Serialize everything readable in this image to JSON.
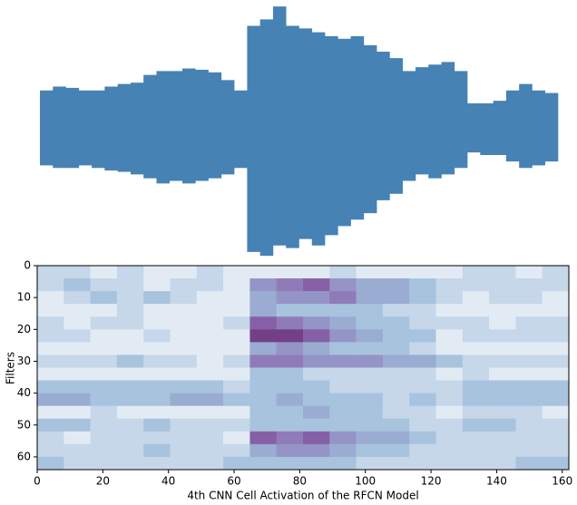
{
  "chart_data": [
    {
      "type": "waveform",
      "color": "#4682b4",
      "ylim": [
        -1,
        1
      ],
      "upper": [
        0.3,
        0.33,
        0.32,
        0.3,
        0.3,
        0.33,
        0.35,
        0.36,
        0.42,
        0.45,
        0.45,
        0.47,
        0.46,
        0.44,
        0.38,
        0.3,
        0.8,
        0.85,
        0.95,
        0.8,
        0.78,
        0.75,
        0.72,
        0.7,
        0.72,
        0.65,
        0.6,
        0.55,
        0.45,
        0.48,
        0.5,
        0.52,
        0.45,
        0.2,
        0.2,
        0.22,
        0.3,
        0.35,
        0.3,
        0.28
      ],
      "lower": [
        -0.28,
        -0.3,
        -0.3,
        -0.28,
        -0.3,
        -0.32,
        -0.33,
        -0.35,
        -0.38,
        -0.42,
        -0.4,
        -0.42,
        -0.4,
        -0.38,
        -0.35,
        -0.3,
        -0.95,
        -0.98,
        -0.9,
        -0.92,
        -0.85,
        -0.9,
        -0.82,
        -0.75,
        -0.7,
        -0.65,
        -0.55,
        -0.5,
        -0.4,
        -0.35,
        -0.38,
        -0.35,
        -0.3,
        -0.18,
        -0.2,
        -0.2,
        -0.25,
        -0.3,
        -0.28,
        -0.25
      ]
    },
    {
      "type": "heatmap",
      "xlabel": "4th CNN Cell Activation of the RFCN Model",
      "ylabel": "Filters",
      "xlim": [
        0,
        162
      ],
      "ylim": [
        0,
        64
      ],
      "xticks": [
        0,
        20,
        40,
        60,
        80,
        100,
        120,
        140,
        160
      ],
      "yticks": [
        0,
        10,
        20,
        30,
        40,
        50,
        60
      ],
      "clim": [
        0,
        1
      ],
      "colormap": [
        "#ffffff",
        "#9ebcda",
        "#8c6bb1",
        "#4d004b"
      ],
      "values": [
        [
          0.2,
          0.2,
          0.1,
          0.2,
          0.1,
          0.1,
          0.2,
          0.1,
          0.1,
          0.1,
          0.1,
          0.2,
          0.1,
          0.1,
          0.1,
          0.1,
          0.2,
          0.2,
          0.1,
          0.2
        ],
        [
          0.2,
          0.3,
          0.2,
          0.2,
          0.1,
          0.2,
          0.2,
          0.1,
          0.5,
          0.6,
          0.7,
          0.5,
          0.4,
          0.4,
          0.3,
          0.2,
          0.2,
          0.2,
          0.2,
          0.2
        ],
        [
          0.1,
          0.2,
          0.3,
          0.2,
          0.3,
          0.2,
          0.1,
          0.1,
          0.4,
          0.5,
          0.5,
          0.6,
          0.4,
          0.4,
          0.3,
          0.2,
          0.1,
          0.2,
          0.2,
          0.1
        ],
        [
          0.1,
          0.1,
          0.1,
          0.2,
          0.1,
          0.1,
          0.1,
          0.1,
          0.4,
          0.3,
          0.3,
          0.3,
          0.3,
          0.2,
          0.2,
          0.1,
          0.1,
          0.1,
          0.1,
          0.1
        ],
        [
          0.2,
          0.1,
          0.2,
          0.2,
          0.1,
          0.1,
          0.1,
          0.2,
          0.7,
          0.6,
          0.5,
          0.4,
          0.3,
          0.3,
          0.2,
          0.2,
          0.2,
          0.1,
          0.2,
          0.2
        ],
        [
          0.2,
          0.2,
          0.1,
          0.1,
          0.2,
          0.1,
          0.1,
          0.1,
          0.8,
          0.8,
          0.7,
          0.5,
          0.4,
          0.3,
          0.3,
          0.1,
          0.2,
          0.2,
          0.2,
          0.2
        ],
        [
          0.1,
          0.1,
          0.1,
          0.1,
          0.1,
          0.1,
          0.1,
          0.1,
          0.4,
          0.5,
          0.4,
          0.3,
          0.3,
          0.3,
          0.2,
          0.1,
          0.1,
          0.1,
          0.1,
          0.1
        ],
        [
          0.2,
          0.2,
          0.2,
          0.3,
          0.2,
          0.2,
          0.1,
          0.2,
          0.6,
          0.6,
          0.5,
          0.5,
          0.5,
          0.4,
          0.4,
          0.3,
          0.2,
          0.2,
          0.2,
          0.2
        ],
        [
          0.1,
          0.1,
          0.1,
          0.1,
          0.1,
          0.1,
          0.1,
          0.1,
          0.3,
          0.3,
          0.2,
          0.2,
          0.2,
          0.2,
          0.2,
          0.1,
          0.2,
          0.1,
          0.1,
          0.1
        ],
        [
          0.3,
          0.3,
          0.3,
          0.3,
          0.3,
          0.3,
          0.3,
          0.2,
          0.3,
          0.3,
          0.3,
          0.2,
          0.2,
          0.2,
          0.2,
          0.2,
          0.3,
          0.3,
          0.3,
          0.3
        ],
        [
          0.4,
          0.4,
          0.3,
          0.3,
          0.3,
          0.4,
          0.4,
          0.3,
          0.3,
          0.4,
          0.3,
          0.3,
          0.3,
          0.2,
          0.3,
          0.2,
          0.3,
          0.3,
          0.3,
          0.3
        ],
        [
          0.1,
          0.1,
          0.2,
          0.1,
          0.1,
          0.1,
          0.1,
          0.1,
          0.3,
          0.3,
          0.4,
          0.3,
          0.3,
          0.2,
          0.2,
          0.1,
          0.2,
          0.2,
          0.2,
          0.1
        ],
        [
          0.3,
          0.3,
          0.2,
          0.2,
          0.3,
          0.2,
          0.2,
          0.2,
          0.3,
          0.3,
          0.3,
          0.3,
          0.3,
          0.3,
          0.2,
          0.2,
          0.3,
          0.3,
          0.2,
          0.2
        ],
        [
          0.2,
          0.1,
          0.2,
          0.2,
          0.2,
          0.2,
          0.2,
          0.1,
          0.7,
          0.6,
          0.7,
          0.5,
          0.4,
          0.4,
          0.3,
          0.2,
          0.2,
          0.2,
          0.2,
          0.2
        ],
        [
          0.2,
          0.2,
          0.2,
          0.2,
          0.3,
          0.2,
          0.2,
          0.2,
          0.4,
          0.5,
          0.5,
          0.4,
          0.3,
          0.3,
          0.2,
          0.2,
          0.2,
          0.2,
          0.2,
          0.2
        ],
        [
          0.3,
          0.2,
          0.2,
          0.2,
          0.2,
          0.2,
          0.2,
          0.3,
          0.3,
          0.3,
          0.3,
          0.3,
          0.2,
          0.2,
          0.2,
          0.2,
          0.2,
          0.2,
          0.3,
          0.3
        ]
      ]
    }
  ]
}
